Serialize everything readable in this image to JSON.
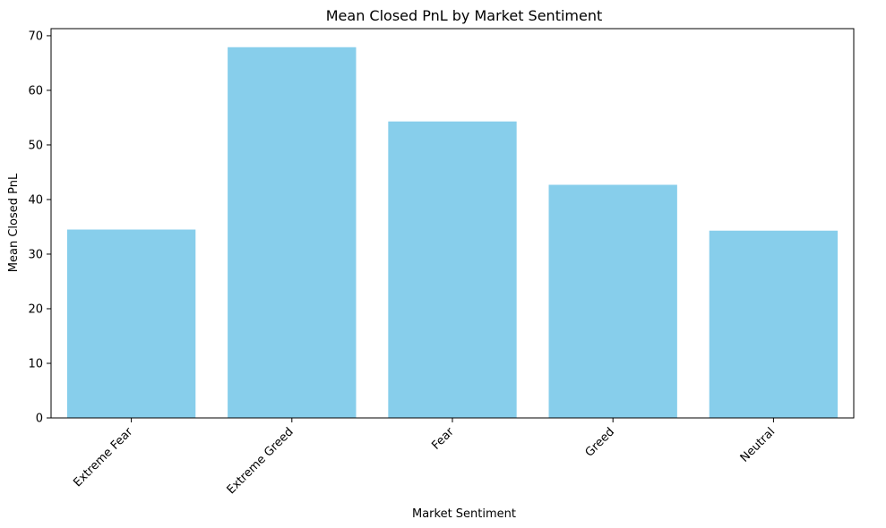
{
  "chart_data": {
    "type": "bar",
    "title": "Mean Closed PnL by Market Sentiment",
    "xlabel": "Market Sentiment",
    "ylabel": "Mean Closed PnL",
    "categories": [
      "Extreme Fear",
      "Extreme Greed",
      "Fear",
      "Greed",
      "Neutral"
    ],
    "values": [
      34.5,
      67.9,
      54.3,
      42.7,
      34.3
    ],
    "ylim": [
      0,
      71.3
    ],
    "yticks": [
      0,
      10,
      20,
      30,
      40,
      50,
      60,
      70
    ],
    "bar_color": "#87CEEB",
    "grid": false,
    "legend": "none"
  }
}
